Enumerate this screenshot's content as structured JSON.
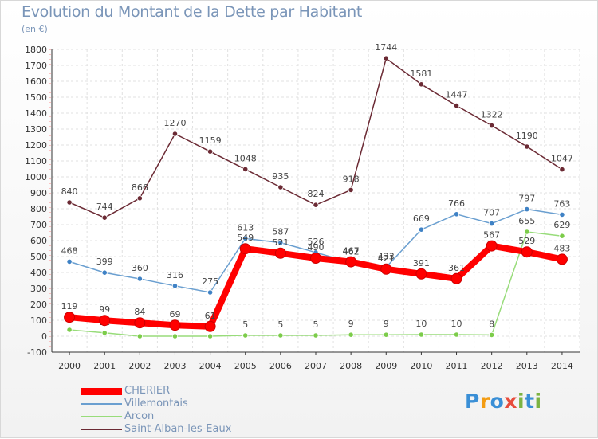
{
  "chart_data": {
    "type": "line",
    "title": "Evolution du Montant de la Dette par Habitant",
    "subtitle": "(en €)",
    "x": [
      "2000",
      "2001",
      "2002",
      "2003",
      "2004",
      "2005",
      "2006",
      "2007",
      "2008",
      "2009",
      "2010",
      "2011",
      "2012",
      "2013",
      "2014"
    ],
    "y_ticks": [
      -100,
      0,
      100,
      200,
      300,
      400,
      500,
      600,
      700,
      800,
      900,
      1000,
      1100,
      1200,
      1300,
      1400,
      1500,
      1600,
      1700,
      1800
    ],
    "ylim": [
      -100,
      1800
    ],
    "grid": true,
    "legend_position": "bottom-left",
    "series": [
      {
        "name": "Saint-Alban-les-Eaux",
        "color": "#6b2a34",
        "marker": "#6b2a34",
        "values": [
          840,
          744,
          866,
          1270,
          1159,
          1048,
          935,
          824,
          918,
          1744,
          1581,
          1447,
          1322,
          1190,
          1047
        ]
      },
      {
        "name": "Villemontais",
        "color": "#6a9fd0",
        "marker": "#3f82c5",
        "values": [
          468,
          399,
          360,
          316,
          275,
          613,
          587,
          526,
          462,
          433,
          669,
          766,
          707,
          797,
          763
        ]
      },
      {
        "name": "Arcon",
        "color": "#98dc7a",
        "marker": "#7ccc4a",
        "values": [
          40,
          21,
          0,
          0,
          0,
          5,
          5,
          5,
          9,
          9,
          10,
          10,
          8,
          655,
          629
        ]
      },
      {
        "name": "CHERIER",
        "color": "#ff0000",
        "marker": "#ff0000",
        "values": [
          119,
          99,
          84,
          69,
          61,
          549,
          521,
          490,
          467,
          421,
          391,
          361,
          567,
          529,
          483
        ]
      }
    ]
  },
  "logo": {
    "letters": [
      {
        "ch": "P",
        "color": "#3a8fd6"
      },
      {
        "ch": "r",
        "color": "#f39c12"
      },
      {
        "ch": "o",
        "color": "#3a8fd6"
      },
      {
        "ch": "x",
        "color": "#e74c3c"
      },
      {
        "ch": "i",
        "color": "#7cb342"
      },
      {
        "ch": "t",
        "color": "#3a8fd6"
      },
      {
        "ch": "i",
        "color": "#7cb342"
      }
    ]
  }
}
